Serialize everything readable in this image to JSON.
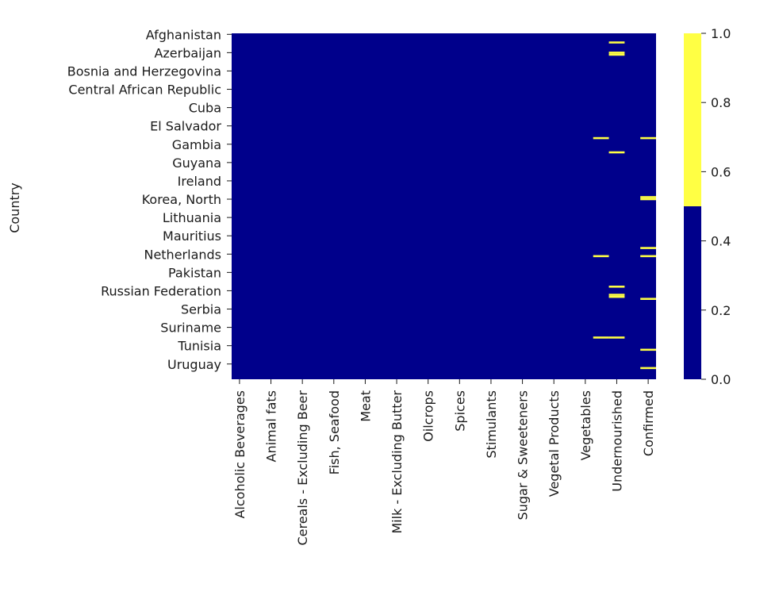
{
  "chart_data": {
    "type": "heatmap",
    "title": "",
    "xlabel": "",
    "ylabel": "Country",
    "x_tick_labels": [
      "Alcoholic Beverages",
      "Animal fats",
      "Cereals - Excluding Beer",
      "Fish, Seafood",
      "Meat",
      "Milk - Excluding Butter",
      "Oilcrops",
      "Spices",
      "Stimulants",
      "Sugar & Sweeteners",
      "Vegetal Products",
      "Vegetables",
      "Undernourished",
      "Confirmed"
    ],
    "y_tick_labels": [
      "Afghanistan",
      "Azerbaijan",
      "Bosnia and Herzegovina",
      "Central African Republic",
      "Cuba",
      "El Salvador",
      "Gambia",
      "Guyana",
      "Ireland",
      "Korea, North",
      "Lithuania",
      "Mauritius",
      "Netherlands",
      "Pakistan",
      "Russian Federation",
      "Serbia",
      "Suriname",
      "Tunisia",
      "Uruguay"
    ],
    "n_rows": 170,
    "n_cols": 27,
    "y_tick_every": 9,
    "x_tick_every": 2,
    "value_range": [
      0,
      1
    ],
    "colormap": [
      {
        "range": [
          0,
          0.5
        ],
        "color": "#00008b"
      },
      {
        "range": [
          0.5,
          1
        ],
        "color": "#ffff44"
      }
    ],
    "colorbar_ticks": [
      "0.0",
      "0.2",
      "0.4",
      "0.6",
      "0.8",
      "1.0"
    ],
    "colorbar_values": [
      0,
      0.2,
      0.4,
      0.6,
      0.8,
      1.0
    ],
    "true_cells": [
      {
        "row": 4,
        "col": 24
      },
      {
        "row": 9,
        "col": 24
      },
      {
        "row": 10,
        "col": 24
      },
      {
        "row": 51,
        "col": 23
      },
      {
        "row": 51,
        "col": 26
      },
      {
        "row": 58,
        "col": 24
      },
      {
        "row": 80,
        "col": 26
      },
      {
        "row": 81,
        "col": 26
      },
      {
        "row": 105,
        "col": 26
      },
      {
        "row": 109,
        "col": 23
      },
      {
        "row": 109,
        "col": 26
      },
      {
        "row": 124,
        "col": 24
      },
      {
        "row": 128,
        "col": 24
      },
      {
        "row": 129,
        "col": 24
      },
      {
        "row": 130,
        "col": 26
      },
      {
        "row": 149,
        "col": 23
      },
      {
        "row": 149,
        "col": 24
      },
      {
        "row": 155,
        "col": 26
      },
      {
        "row": 164,
        "col": 26
      }
    ]
  }
}
